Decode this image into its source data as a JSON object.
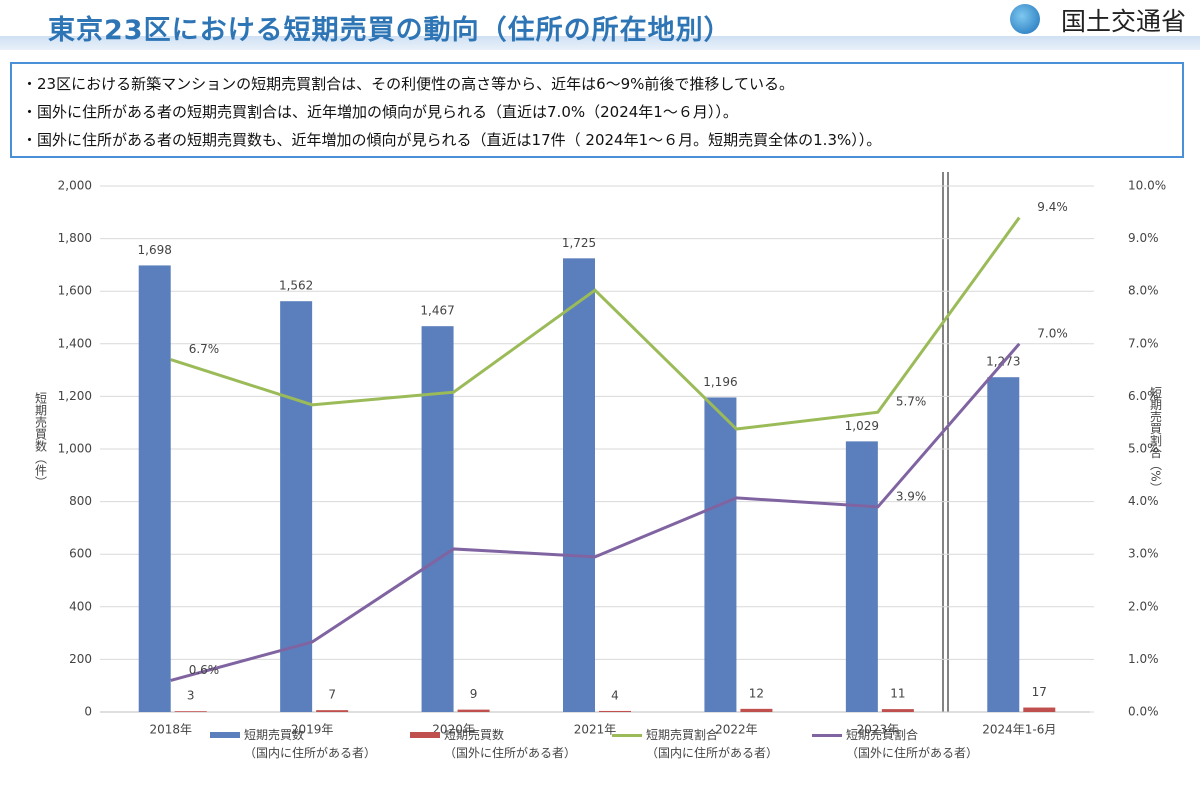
{
  "header": {
    "title": "東京23区における短期売買の動向（住所の所在地別）",
    "org": "国土交通省"
  },
  "bullets": [
    "・23区における新築マンションの短期売買割合は、その利便性の高さ等から、近年は6～9%前後で推移している。",
    "・国外に住所がある者の短期売買割合は、近年増加の傾向が見られる（直近は7.0%（2024年1～６月））。",
    "・国外に住所がある者の短期売買数も、近年増加の傾向が見られる（直近は17件（ 2024年1～６月。短期売買全体の1.3%））。"
  ],
  "chart_data": {
    "type": "bar",
    "categories": [
      "2018年",
      "2019年",
      "2020年",
      "2021年",
      "2022年",
      "2023年",
      "2024年1-6月"
    ],
    "y_label": "短期売買数（件）",
    "y2_label": "短期売買割合（%）",
    "ylim": [
      0,
      2000
    ],
    "yticks": [
      0,
      200,
      400,
      600,
      800,
      {
        "value": 1000,
        "label": "1,000"
      },
      {
        "value": 1200,
        "label": "1,200"
      },
      {
        "value": 1400,
        "label": "1,400"
      },
      {
        "value": 1600,
        "label": "1,600"
      },
      {
        "value": 1800,
        "label": "1,800"
      },
      {
        "value": 2000,
        "label": "2,000"
      }
    ],
    "y2lim": [
      0,
      10
    ],
    "y2ticks": [
      {
        "value": 0,
        "label": "0.0%"
      },
      {
        "value": 1,
        "label": "1.0%"
      },
      {
        "value": 2,
        "label": "2.0%"
      },
      {
        "value": 3,
        "label": "3.0%"
      },
      {
        "value": 4,
        "label": "4.0%"
      },
      {
        "value": 5,
        "label": "5.0%"
      },
      {
        "value": 6,
        "label": "6.0%"
      },
      {
        "value": 7,
        "label": "7.0%"
      },
      {
        "value": 8,
        "label": "8.0%"
      },
      {
        "value": 9,
        "label": "9.0%"
      },
      {
        "value": 10,
        "label": "10.0%"
      }
    ],
    "grid": true,
    "series": [
      {
        "name": "短期売買数\n（国内に住所がある者）",
        "type": "bar",
        "color": "#5b7fbc",
        "values": [
          1698,
          1562,
          1467,
          1725,
          1196,
          1029,
          1273
        ],
        "value_labels": [
          "1,698",
          "1,562",
          "1,467",
          "1,725",
          "1,196",
          "1,029",
          "1,273"
        ]
      },
      {
        "name": "短期売買数\n（国外に住所がある者）",
        "type": "bar",
        "color": "#c0504d",
        "values": [
          3,
          7,
          9,
          4,
          12,
          11,
          17
        ]
      },
      {
        "name": "短期売買割合\n（国内に住所がある者）",
        "type": "line",
        "axis": "y2",
        "color": "#9bbb59",
        "values": [
          6.7,
          5.84,
          6.08,
          8.02,
          5.38,
          5.7,
          9.4
        ],
        "value_labels": [
          "6.7%",
          null,
          null,
          null,
          null,
          "5.7%",
          "9.4%"
        ]
      },
      {
        "name": "短期売買割合\n（国外に住所がある者）",
        "type": "line",
        "axis": "y2",
        "color": "#8064a2",
        "values": [
          0.6,
          1.33,
          3.1,
          2.95,
          4.07,
          3.9,
          7.0
        ],
        "value_labels": [
          "0.6%",
          null,
          null,
          null,
          null,
          "3.9%",
          "7.0%"
        ]
      }
    ]
  }
}
